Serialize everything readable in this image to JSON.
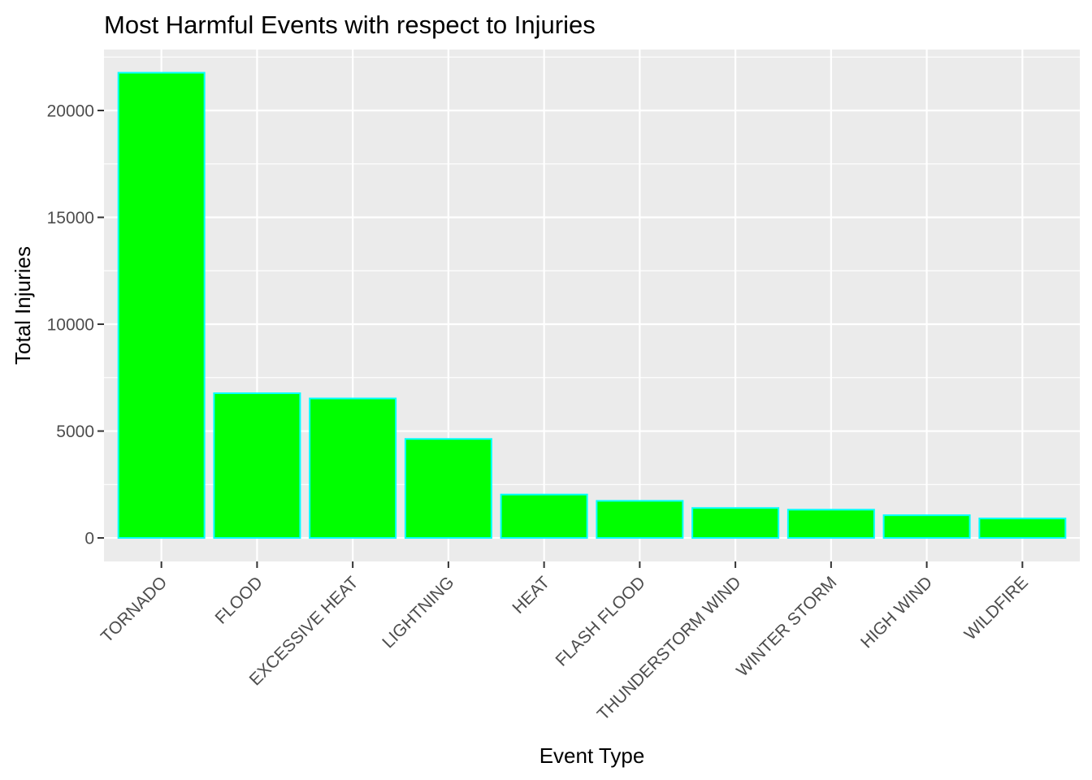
{
  "chart_data": {
    "type": "bar",
    "title": "Most Harmful Events with respect to Injuries",
    "xlabel": "Event Type",
    "ylabel": "Total Injuries",
    "categories": [
      "TORNADO",
      "FLOOD",
      "EXCESSIVE HEAT",
      "LIGHTNING",
      "HEAT",
      "FLASH FLOOD",
      "THUNDERSTORM WIND",
      "WINTER STORM",
      "HIGH WIND",
      "WILDFIRE"
    ],
    "values": [
      21765,
      6770,
      6525,
      4631,
      2030,
      1734,
      1400,
      1321,
      1062,
      911
    ],
    "y_ticks": [
      0,
      5000,
      10000,
      15000,
      20000
    ],
    "ylim": [
      -1100,
      22850
    ],
    "grid": true,
    "colors": {
      "bar_fill": "#00ff00",
      "bar_outline": "#00ffff",
      "panel_background": "#ebebeb",
      "grid": "#ffffff"
    }
  }
}
